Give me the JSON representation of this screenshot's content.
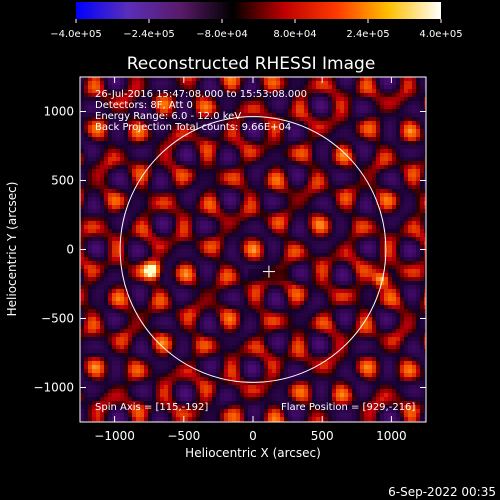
{
  "chart_data": {
    "type": "heatmap",
    "title": "Reconstructed RHESSI Image",
    "xlabel": "Heliocentric X (arcsec)",
    "ylabel": "Heliocentric Y (arcsec)",
    "xlim": [
      -1250,
      1250
    ],
    "ylim": [
      -1250,
      1250
    ],
    "x_ticks": [
      -1000,
      -500,
      0,
      500,
      1000
    ],
    "x_tick_labels": [
      "−1000",
      "−500",
      "0",
      "500",
      "1000"
    ],
    "y_ticks": [
      -1000,
      -500,
      0,
      500,
      1000
    ],
    "y_tick_labels": [
      "−1000",
      "−500",
      "0",
      "500",
      "1000"
    ],
    "colorbar": {
      "range": [
        -400000,
        400000
      ],
      "ticks": [
        -400000,
        -240000,
        -80000,
        80000,
        240000,
        400000
      ],
      "tick_labels": [
        "−4.0e+05",
        "−2.4e+05",
        "−8.0e+04",
        "8.0e+04",
        "2.4e+05",
        "4.0e+05"
      ],
      "colors": [
        "#0000ff",
        "#5a2fb8",
        "#5a1a6a",
        "#000000",
        "#c00000",
        "#ff3a00",
        "#ffc000",
        "#ffffff"
      ]
    },
    "info_lines": [
      "26-Jul-2016 15:47:08.000 to 15:53:08.000",
      "Detectors: 8F, Att 0",
      "Energy Range: 6.0 - 12.0 keV",
      "Back Projection     Total counts: 9.66E+04"
    ],
    "spin_axis_label": "Spin Axis = [115,-192]",
    "flare_position_label": "Flare Position = [929,-216]",
    "spin_axis": [
      115,
      -192
    ],
    "flare_position": [
      929,
      -216
    ],
    "mirror_source": [
      -720,
      -150
    ],
    "solar_limb_radius": 960,
    "center_marker": [
      115,
      -160
    ]
  },
  "footer_date": "6-Sep-2022 00:35"
}
